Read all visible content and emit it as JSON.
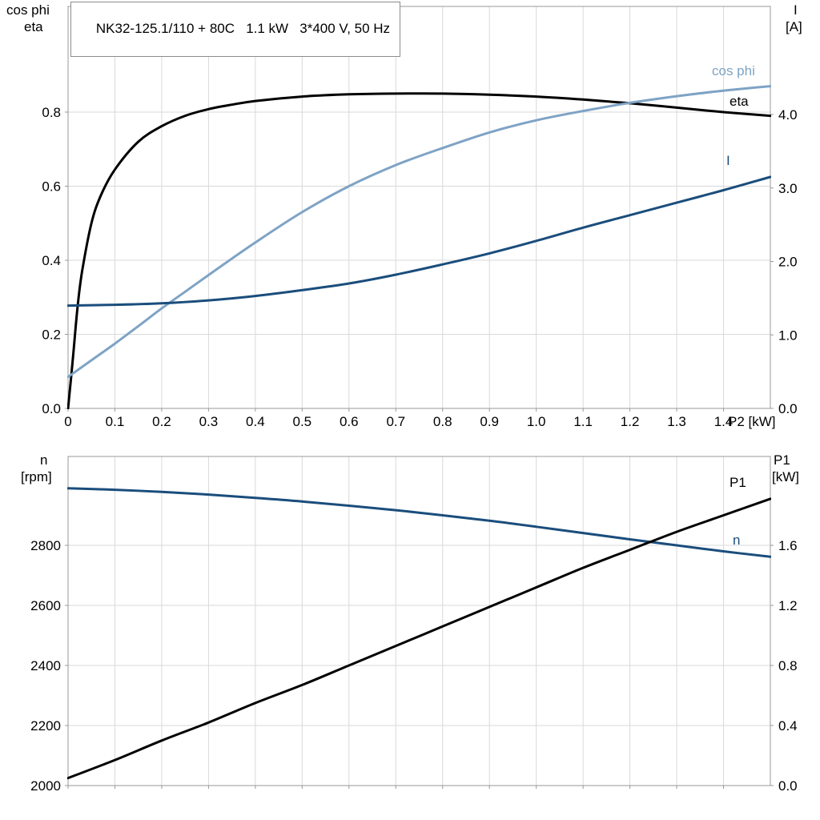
{
  "title_box": "NK32-125.1/110 + 80C   1.1 kW   3*400 V, 50 Hz",
  "axis_labels": {
    "top_left_1": "cos phi",
    "top_left_2": "eta",
    "top_right_1": "I",
    "top_right_2": "[A]",
    "bottom_left_1": "n",
    "bottom_left_2": "[rpm]",
    "bottom_right_1": "P1",
    "bottom_right_2": "[kW]"
  },
  "curve_labels": {
    "cos_phi": "cos phi",
    "eta": "eta",
    "current": "I",
    "p1": "P1",
    "n": "n"
  },
  "colors": {
    "black": "#000000",
    "light_blue": "#7ea3c5",
    "dark_blue": "#1a4d7c",
    "grid": "#d9d9d9",
    "frame": "#999999"
  },
  "chart_data": [
    {
      "type": "line",
      "title": "NK32-125.1/110 + 80C   1.1 kW   3*400 V, 50 Hz",
      "xlabel": "P2 [kW]",
      "xlim": [
        0,
        1.5
      ],
      "x_ticks": [
        0,
        0.1,
        0.2,
        0.3,
        0.4,
        0.5,
        0.6,
        0.7,
        0.8,
        0.9,
        1.0,
        1.1,
        1.2,
        1.3,
        1.4
      ],
      "x_tick_labels": [
        "0",
        "0.1",
        "0.2",
        "0.3",
        "0.4",
        "0.5",
        "0.6",
        "0.7",
        "0.8",
        "0.9",
        "1.0",
        "1.1",
        "1.2",
        "1.3",
        "1.4"
      ],
      "left_axis": {
        "label": "cos phi / eta",
        "lim": [
          0,
          1.0854
        ],
        "ticks": [
          0,
          0.2,
          0.4,
          0.6,
          0.8
        ],
        "tick_labels": [
          "0.0",
          "0.2",
          "0.4",
          "0.6",
          "0.8"
        ]
      },
      "right_axis": {
        "label": "I [A]",
        "lim": [
          0,
          5.4714
        ],
        "ticks": [
          0,
          1,
          2,
          3,
          4
        ],
        "tick_labels": [
          "0.0",
          "1.0",
          "2.0",
          "3.0",
          "4.0"
        ]
      },
      "grid": true,
      "legend_position": "right-inline",
      "series": [
        {
          "name": "eta",
          "axis": "left",
          "color_key": "black",
          "x": [
            0,
            0.01,
            0.02,
            0.03,
            0.05,
            0.07,
            0.1,
            0.15,
            0.2,
            0.25,
            0.3,
            0.35,
            0.4,
            0.5,
            0.6,
            0.7,
            0.8,
            0.9,
            1.0,
            1.1,
            1.2,
            1.3,
            1.4,
            1.5
          ],
          "y": [
            0,
            0.13,
            0.27,
            0.37,
            0.5,
            0.575,
            0.645,
            0.72,
            0.762,
            0.79,
            0.808,
            0.82,
            0.83,
            0.842,
            0.848,
            0.85,
            0.85,
            0.847,
            0.842,
            0.834,
            0.824,
            0.812,
            0.8,
            0.79
          ]
        },
        {
          "name": "cos phi",
          "axis": "left",
          "color_key": "light_blue",
          "x": [
            0,
            0.05,
            0.1,
            0.15,
            0.2,
            0.25,
            0.3,
            0.4,
            0.5,
            0.6,
            0.7,
            0.8,
            0.9,
            1.0,
            1.1,
            1.2,
            1.3,
            1.4,
            1.5
          ],
          "y": [
            0.085,
            0.13,
            0.175,
            0.222,
            0.27,
            0.315,
            0.36,
            0.448,
            0.53,
            0.6,
            0.657,
            0.703,
            0.745,
            0.778,
            0.803,
            0.825,
            0.843,
            0.858,
            0.87
          ]
        },
        {
          "name": "I",
          "axis": "right",
          "color_key": "dark_blue",
          "x": [
            0,
            0.1,
            0.2,
            0.3,
            0.4,
            0.5,
            0.6,
            0.7,
            0.8,
            0.9,
            1.0,
            1.1,
            1.2,
            1.3,
            1.4,
            1.5
          ],
          "y": [
            1.4,
            1.41,
            1.43,
            1.47,
            1.53,
            1.61,
            1.7,
            1.82,
            1.96,
            2.11,
            2.28,
            2.46,
            2.63,
            2.8,
            2.97,
            3.15
          ]
        }
      ]
    },
    {
      "type": "line",
      "title": "",
      "xlabel": "",
      "xlim": [
        0,
        1.5
      ],
      "x_ticks": [
        0,
        0.1,
        0.2,
        0.3,
        0.4,
        0.5,
        0.6,
        0.7,
        0.8,
        0.9,
        1.0,
        1.1,
        1.2,
        1.3,
        1.4
      ],
      "x_tick_labels": [],
      "left_axis": {
        "label": "n [rpm]",
        "lim": [
          2000,
          3096
        ],
        "ticks": [
          2000,
          2200,
          2400,
          2600,
          2800
        ],
        "tick_labels": [
          "2000",
          "2200",
          "2400",
          "2600",
          "2800"
        ]
      },
      "right_axis": {
        "label": "P1 [kW]",
        "lim": [
          0,
          2.192
        ],
        "ticks": [
          0,
          0.4,
          0.8,
          1.2,
          1.6
        ],
        "tick_labels": [
          "0.0",
          "0.4",
          "0.8",
          "1.2",
          "1.6"
        ]
      },
      "grid": true,
      "legend_position": "right-inline",
      "series": [
        {
          "name": "n",
          "axis": "left",
          "color_key": "dark_blue",
          "x": [
            0,
            0.1,
            0.2,
            0.3,
            0.4,
            0.5,
            0.6,
            0.7,
            0.8,
            0.9,
            1.0,
            1.1,
            1.2,
            1.3,
            1.4,
            1.5
          ],
          "y": [
            2990,
            2985,
            2978,
            2969,
            2958,
            2946,
            2932,
            2917,
            2900,
            2882,
            2862,
            2841,
            2820,
            2800,
            2780,
            2762
          ]
        },
        {
          "name": "P1",
          "axis": "right",
          "color_key": "black",
          "x": [
            0,
            0.1,
            0.2,
            0.3,
            0.4,
            0.5,
            0.6,
            0.7,
            0.8,
            0.9,
            1.0,
            1.1,
            1.2,
            1.3,
            1.4,
            1.5
          ],
          "y": [
            0.05,
            0.17,
            0.3,
            0.42,
            0.55,
            0.67,
            0.8,
            0.93,
            1.06,
            1.19,
            1.32,
            1.45,
            1.57,
            1.69,
            1.8,
            1.91
          ]
        }
      ]
    }
  ]
}
